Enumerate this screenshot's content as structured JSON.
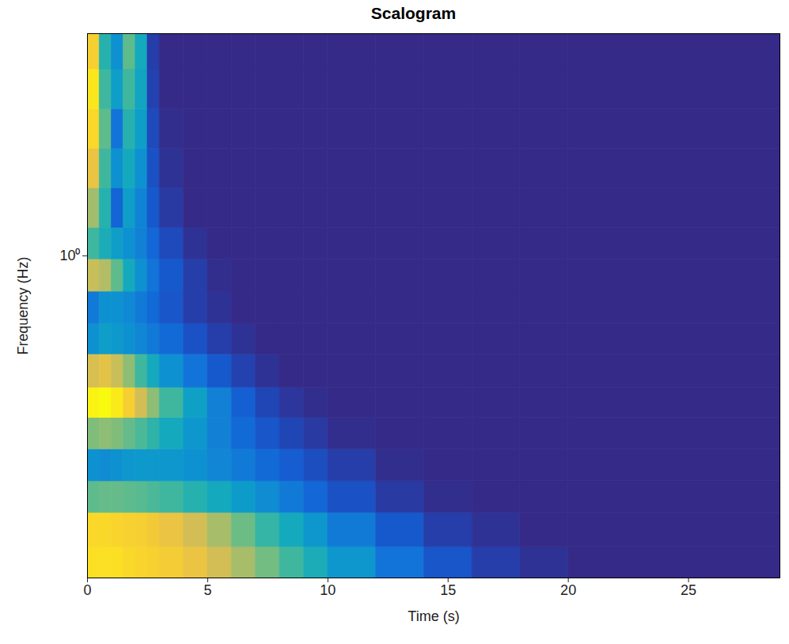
{
  "chart_data": {
    "type": "heatmap",
    "title": "Scalogram",
    "x_label": "Time (s)",
    "y_label": "Frequency (Hz)",
    "xlim": [
      0,
      28.8
    ],
    "xticks": [
      0,
      5,
      10,
      15,
      20,
      25
    ],
    "ylim": [
      0.15,
      3.7
    ],
    "yticks": [
      {
        "value": 1,
        "label": "10⁰"
      }
    ],
    "log": "y",
    "grid": false,
    "x_edges": [
      0,
      0.5,
      1,
      1.5,
      2,
      2.5,
      3,
      4,
      5,
      6,
      7,
      8,
      9,
      10,
      12,
      14,
      16,
      18,
      20,
      28.8
    ],
    "y_edges": [
      0.15,
      0.18,
      0.22,
      0.265,
      0.32,
      0.385,
      0.46,
      0.56,
      0.67,
      0.81,
      0.98,
      1.18,
      1.49,
      1.88,
      2.37,
      3.0,
      3.7
    ],
    "cells": [
      [
        0.9,
        0.9,
        0.9,
        0.88,
        0.87,
        0.86,
        0.84,
        0.8,
        0.74,
        0.66,
        0.58,
        0.5,
        0.42,
        0.32,
        0.2,
        0.11,
        0.05,
        0.02,
        0
      ],
      [
        0.88,
        0.88,
        0.87,
        0.86,
        0.85,
        0.83,
        0.8,
        0.74,
        0.66,
        0.57,
        0.48,
        0.4,
        0.32,
        0.22,
        0.12,
        0.05,
        0.02,
        0,
        0
      ],
      [
        0.55,
        0.56,
        0.56,
        0.55,
        0.54,
        0.52,
        0.5,
        0.45,
        0.4,
        0.34,
        0.28,
        0.22,
        0.16,
        0.1,
        0.04,
        0.01,
        0,
        0,
        0
      ],
      [
        0.3,
        0.28,
        0.3,
        0.32,
        0.33,
        0.33,
        0.32,
        0.3,
        0.26,
        0.22,
        0.17,
        0.13,
        0.09,
        0.05,
        0.01,
        0,
        0,
        0,
        0
      ],
      [
        0.6,
        0.62,
        0.6,
        0.56,
        0.52,
        0.47,
        0.4,
        0.32,
        0.24,
        0.17,
        0.11,
        0.07,
        0.04,
        0.01,
        0,
        0,
        0,
        0,
        0
      ],
      [
        0.95,
        0.97,
        0.93,
        0.85,
        0.74,
        0.62,
        0.5,
        0.36,
        0.24,
        0.14,
        0.07,
        0.03,
        0.01,
        0,
        0,
        0,
        0,
        0,
        0
      ],
      [
        0.75,
        0.78,
        0.72,
        0.62,
        0.5,
        0.4,
        0.3,
        0.2,
        0.12,
        0.06,
        0.02,
        0,
        0,
        0,
        0,
        0,
        0,
        0,
        0
      ],
      [
        0.3,
        0.35,
        0.33,
        0.3,
        0.26,
        0.22,
        0.17,
        0.1,
        0.05,
        0.02,
        0,
        0,
        0,
        0,
        0,
        0,
        0,
        0,
        0
      ],
      [
        0.22,
        0.3,
        0.3,
        0.27,
        0.22,
        0.17,
        0.11,
        0.05,
        0.02,
        0,
        0,
        0,
        0,
        0,
        0,
        0,
        0,
        0,
        0
      ],
      [
        0.72,
        0.68,
        0.55,
        0.4,
        0.3,
        0.2,
        0.12,
        0.05,
        0.01,
        0,
        0,
        0,
        0,
        0,
        0,
        0,
        0,
        0,
        0
      ],
      [
        0.5,
        0.42,
        0.35,
        0.3,
        0.24,
        0.16,
        0.08,
        0.02,
        0,
        0,
        0,
        0,
        0,
        0,
        0,
        0,
        0,
        0,
        0
      ],
      [
        0.65,
        0.45,
        0.15,
        0.35,
        0.25,
        0.12,
        0.04,
        0,
        0,
        0,
        0,
        0,
        0,
        0,
        0,
        0,
        0,
        0,
        0
      ],
      [
        0.8,
        0.5,
        0.3,
        0.4,
        0.3,
        0.1,
        0.02,
        0,
        0,
        0,
        0,
        0,
        0,
        0,
        0,
        0,
        0,
        0,
        0
      ],
      [
        0.88,
        0.55,
        0.2,
        0.45,
        0.35,
        0.08,
        0.01,
        0,
        0,
        0,
        0,
        0,
        0,
        0,
        0,
        0,
        0,
        0,
        0
      ],
      [
        0.92,
        0.5,
        0.35,
        0.5,
        0.38,
        0.06,
        0,
        0,
        0,
        0,
        0,
        0,
        0,
        0,
        0,
        0,
        0,
        0,
        0
      ],
      [
        0.85,
        0.45,
        0.3,
        0.55,
        0.4,
        0.05,
        0,
        0,
        0,
        0,
        0,
        0,
        0,
        0,
        0,
        0,
        0,
        0,
        0
      ]
    ]
  }
}
